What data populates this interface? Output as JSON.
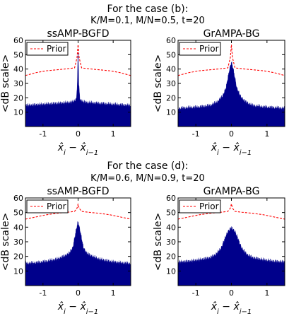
{
  "figure": {
    "section_b_title": "For the case (b):",
    "section_b_params": "K/M=0.1, M/N=0.5, t=20",
    "section_d_title": "For the case (d):",
    "section_d_params": "K/M=0.6, M/N=0.9, t=20"
  },
  "colors": {
    "histogram": "#00008B",
    "prior": "#FF0000",
    "axes": "#000000",
    "background": "#FFFFFF"
  },
  "chart_data": [
    {
      "type": "area",
      "case": "(b)",
      "title": "ssAMP-BGFD",
      "xlabel": "x̂_i − x̂_{i−1}",
      "ylabel": "<dB scale>",
      "xlim": [
        -1.5,
        1.5
      ],
      "ylim": [
        0,
        60
      ],
      "xticks": [
        "-1",
        "0",
        "1"
      ],
      "yticks": [
        "10",
        "20",
        "30",
        "40",
        "50",
        "60"
      ],
      "legend": {
        "entries": [
          "Prior"
        ],
        "placement": "top-left"
      },
      "series": [
        {
          "name": "",
          "x": [
            -1.5,
            -1.2,
            -0.9,
            -0.6,
            -0.3,
            -0.15,
            -0.05,
            -0.02,
            0,
            0.02,
            0.05,
            0.15,
            0.3,
            0.6,
            0.9,
            1.2,
            1.5
          ],
          "values": [
            14.5,
            15,
            15.5,
            16,
            16.5,
            17,
            19,
            30,
            55,
            30,
            19,
            17,
            16.5,
            16,
            15.5,
            15,
            14.5
          ]
        },
        {
          "name": "Prior",
          "x": [
            -1.5,
            -1.2,
            -0.9,
            -0.6,
            -0.3,
            -0.1,
            -0.03,
            0,
            0.03,
            0.1,
            0.3,
            0.6,
            0.9,
            1.2,
            1.5
          ],
          "values": [
            35.5,
            37.5,
            38.8,
            39.5,
            40.2,
            40.8,
            48,
            57,
            48,
            40.8,
            40.2,
            39.5,
            38.8,
            37.5,
            35.5
          ]
        }
      ]
    },
    {
      "type": "area",
      "case": "(b)",
      "title": "GrAMPA-BG",
      "xlabel": "x̂_i − x̂_{i−1}",
      "ylabel": "<dB scale>",
      "xlim": [
        -1.5,
        1.5
      ],
      "ylim": [
        0,
        60
      ],
      "xticks": [
        "-1",
        "0",
        "1"
      ],
      "yticks": [
        "10",
        "20",
        "30",
        "40",
        "50",
        "60"
      ],
      "legend": {
        "entries": [
          "Prior"
        ],
        "placement": "top-left"
      },
      "series": [
        {
          "name": "",
          "x": [
            -1.5,
            -1.2,
            -0.9,
            -0.6,
            -0.4,
            -0.25,
            -0.15,
            -0.05,
            0,
            0.05,
            0.15,
            0.25,
            0.4,
            0.6,
            0.9,
            1.2,
            1.5
          ],
          "values": [
            12.5,
            13,
            13.5,
            14.5,
            17,
            21,
            27,
            40,
            45,
            40,
            27,
            21,
            17,
            14.5,
            13.5,
            13,
            12.5
          ]
        },
        {
          "name": "Prior",
          "x": [
            -1.5,
            -1.2,
            -0.9,
            -0.6,
            -0.3,
            -0.1,
            -0.03,
            0,
            0.03,
            0.1,
            0.3,
            0.6,
            0.9,
            1.2,
            1.5
          ],
          "values": [
            35.5,
            37.5,
            38.8,
            39.5,
            40.2,
            40.8,
            48,
            57,
            48,
            40.8,
            40.2,
            39.5,
            38.8,
            37.5,
            35.5
          ]
        }
      ]
    },
    {
      "type": "area",
      "case": "(d)",
      "title": "ssAMP-BGFD",
      "xlabel": "x̂_i − x̂_{i−1}",
      "ylabel": "<dB scale>",
      "xlim": [
        -1.5,
        1.5
      ],
      "ylim": [
        0,
        60
      ],
      "xticks": [
        "-1",
        "0",
        "1"
      ],
      "yticks": [
        "10",
        "20",
        "30",
        "40",
        "50",
        "60"
      ],
      "legend": {
        "entries": [
          "Prior"
        ],
        "placement": "top-left"
      },
      "series": [
        {
          "name": "",
          "x": [
            -1.5,
            -1.2,
            -0.9,
            -0.6,
            -0.4,
            -0.25,
            -0.15,
            -0.07,
            0,
            0.07,
            0.15,
            0.25,
            0.4,
            0.6,
            0.9,
            1.2,
            1.5
          ],
          "values": [
            15,
            15.5,
            16.5,
            18,
            20,
            22,
            26,
            36,
            44,
            36,
            26,
            22,
            20,
            18,
            16.5,
            15.5,
            15
          ]
        },
        {
          "name": "Prior",
          "x": [
            -1.5,
            -1.2,
            -0.9,
            -0.6,
            -0.3,
            -0.1,
            -0.03,
            0,
            0.03,
            0.1,
            0.3,
            0.6,
            0.9,
            1.2,
            1.5
          ],
          "values": [
            45.5,
            47,
            48.5,
            49.5,
            50.2,
            50.8,
            53,
            56,
            53,
            50.8,
            50.2,
            49.5,
            48.5,
            47,
            45.5
          ]
        }
      ]
    },
    {
      "type": "area",
      "case": "(d)",
      "title": "GrAMPA-BG",
      "xlabel": "x̂_i − x̂_{i−1}",
      "ylabel": "<dB scale>",
      "xlim": [
        -1.5,
        1.5
      ],
      "ylim": [
        0,
        60
      ],
      "xticks": [
        "-1",
        "0",
        "1"
      ],
      "yticks": [
        "10",
        "20",
        "30",
        "40",
        "50",
        "60"
      ],
      "legend": {
        "entries": [
          "Prior"
        ],
        "placement": "top-left"
      },
      "series": [
        {
          "name": "",
          "x": [
            -1.5,
            -1.2,
            -0.9,
            -0.6,
            -0.45,
            -0.3,
            -0.2,
            -0.1,
            0,
            0.1,
            0.2,
            0.3,
            0.45,
            0.6,
            0.9,
            1.2,
            1.5
          ],
          "values": [
            16,
            16.5,
            17.5,
            19,
            21,
            25,
            31,
            37,
            39.5,
            37,
            31,
            25,
            21,
            19,
            17.5,
            16.5,
            16
          ]
        },
        {
          "name": "Prior",
          "x": [
            -1.5,
            -1.2,
            -0.9,
            -0.6,
            -0.3,
            -0.1,
            -0.03,
            0,
            0.03,
            0.1,
            0.3,
            0.6,
            0.9,
            1.2,
            1.5
          ],
          "values": [
            45.5,
            47,
            48.5,
            49.5,
            50.2,
            50.8,
            53,
            56,
            53,
            50.8,
            50.2,
            49.5,
            48.5,
            47,
            45.5
          ]
        }
      ]
    }
  ]
}
